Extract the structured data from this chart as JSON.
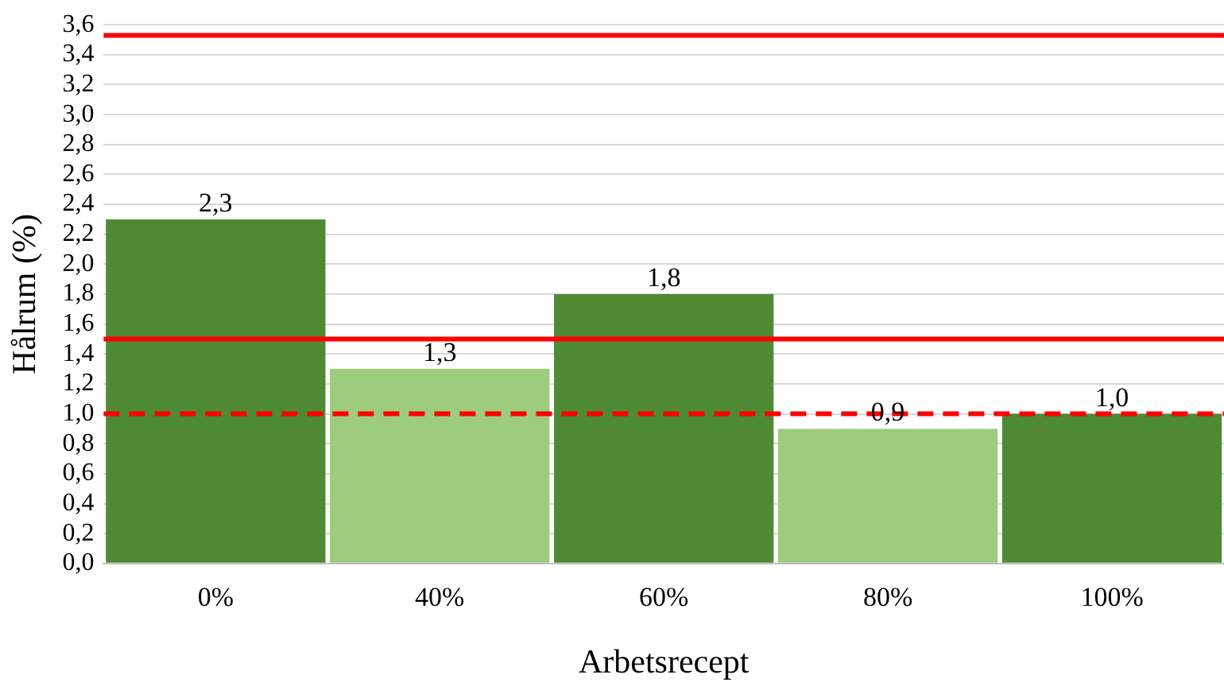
{
  "chart_data": {
    "type": "bar",
    "xlabel": "Arbetsrecept",
    "ylabel": "Hålrum (%)",
    "categories": [
      "0%",
      "40%",
      "60%",
      "80%",
      "100%"
    ],
    "values": [
      2.3,
      1.3,
      1.8,
      0.9,
      1.0
    ],
    "value_labels": [
      "2,3",
      "1,3",
      "1,8",
      "0,9",
      "1,0"
    ],
    "colors": [
      "#4e8a34",
      "#9ccc7c",
      "#4e8a34",
      "#9ccc7c",
      "#4e8a34"
    ],
    "ylim": [
      0,
      3.6
    ],
    "yticks": [
      {
        "value": 0,
        "label": "0,0"
      },
      {
        "value": 0.2,
        "label": "0,2"
      },
      {
        "value": 0.4,
        "label": "0,4"
      },
      {
        "value": 0.6,
        "label": "0,6"
      },
      {
        "value": 0.8,
        "label": "0,8"
      },
      {
        "value": 1.0,
        "label": "1,0"
      },
      {
        "value": 1.2,
        "label": "1,2"
      },
      {
        "value": 1.4,
        "label": "1,4"
      },
      {
        "value": 1.6,
        "label": "1,6"
      },
      {
        "value": 1.8,
        "label": "1,8"
      },
      {
        "value": 2.0,
        "label": "2,0"
      },
      {
        "value": 2.2,
        "label": "2,2"
      },
      {
        "value": 2.4,
        "label": "2,4"
      },
      {
        "value": 2.6,
        "label": "2,6"
      },
      {
        "value": 2.8,
        "label": "2,8"
      },
      {
        "value": 3.0,
        "label": "3,0"
      },
      {
        "value": 3.2,
        "label": "3,2"
      },
      {
        "value": 3.4,
        "label": "3,4"
      },
      {
        "value": 3.6,
        "label": "3,6"
      }
    ],
    "grid": "y",
    "ref_lines": [
      {
        "axis": "y",
        "value": 3.53,
        "color": "#ff0000",
        "line_style": "solid"
      },
      {
        "axis": "y",
        "value": 1.5,
        "color": "#ff0000",
        "line_style": "solid"
      },
      {
        "axis": "y",
        "value": 1.0,
        "color": "#ff0000",
        "line_style": "dashed"
      }
    ]
  }
}
